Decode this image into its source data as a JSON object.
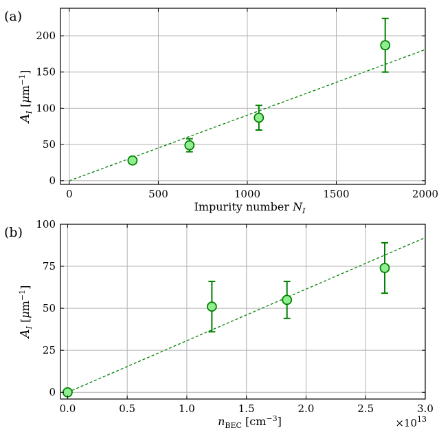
{
  "chart_data": [
    {
      "type": "scatter",
      "panel_label": "(a)",
      "xlabel": "Impurity number N_I",
      "ylabel": "A_I [μm^-1]",
      "xlim": [
        -50,
        2000
      ],
      "ylim": [
        -5,
        238
      ],
      "xticks": [
        0,
        500,
        1000,
        1500,
        2000
      ],
      "yticks": [
        0,
        50,
        100,
        150,
        200
      ],
      "grid": true,
      "points": [
        {
          "x": 355,
          "y": 28,
          "err_low": 0,
          "err_high": 0
        },
        {
          "x": 675,
          "y": 49,
          "err_low": 9,
          "err_high": 9
        },
        {
          "x": 1065,
          "y": 87,
          "err_low": 17,
          "err_high": 17
        },
        {
          "x": 1775,
          "y": 187,
          "err_low": 37,
          "err_high": 37
        }
      ],
      "fit_line": {
        "slope": 0.0905,
        "intercept": 0
      }
    },
    {
      "type": "scatter",
      "panel_label": "(b)",
      "xlabel": "n_BEC [cm^-3]",
      "ylabel": "A_I [μm^-1]",
      "x_multiplier": "×10^13",
      "xlim": [
        -0.06,
        3.0
      ],
      "ylim": [
        -4,
        100
      ],
      "xticks": [
        0.0,
        0.5,
        1.0,
        1.5,
        2.0,
        2.5,
        3.0
      ],
      "yticks": [
        0,
        25,
        50,
        75,
        100
      ],
      "grid": true,
      "points": [
        {
          "x": 0.0,
          "y": 0,
          "err_low": 0,
          "err_high": 0
        },
        {
          "x": 1.21,
          "y": 51,
          "err_low": 15,
          "err_high": 15
        },
        {
          "x": 1.84,
          "y": 55,
          "err_low": 11,
          "err_high": 11
        },
        {
          "x": 2.66,
          "y": 74,
          "err_low": 15,
          "err_high": 15
        }
      ],
      "fit_line": {
        "slope": 30.7,
        "intercept": 0
      }
    }
  ],
  "colors": {
    "marker_fill": "#90ee90",
    "marker_edge": "#008000",
    "errorbar": "#008000",
    "fit_line": "#008000",
    "grid": "#b0b0b0"
  }
}
